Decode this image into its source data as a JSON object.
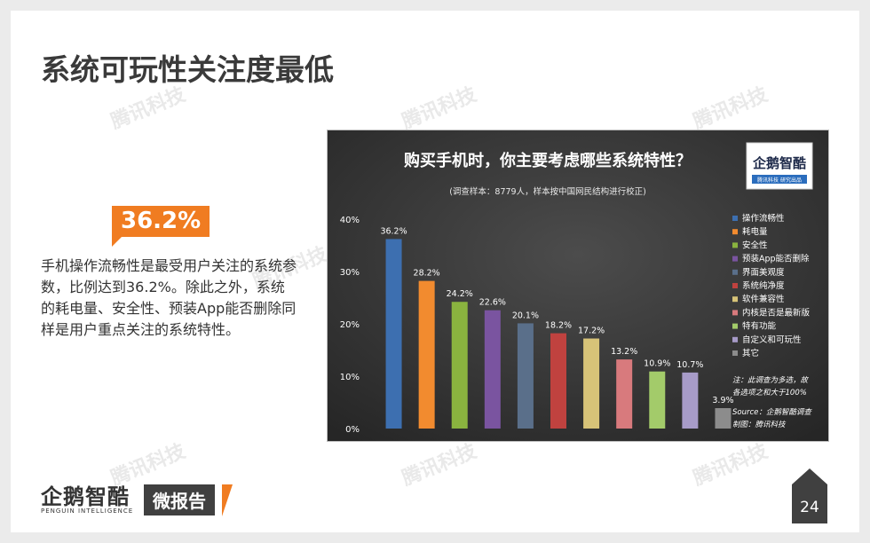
{
  "page": {
    "title": "系统可玩性关注度最低",
    "highlight": "36.2%",
    "paragraph": "手机操作流畅性是最受用户关注的系统参数，比例达到36.2%。除此之外，系统的耗电量、安全性、预装App能否删除同样是用户重点关注的系统特性。",
    "watermark": "腾讯科技",
    "logo_text": "企鹅智酷",
    "logo_sub": "PENGUIN INTELLIGENCE",
    "report_label": "微报告",
    "page_number": "24"
  },
  "chart_logo": {
    "name": "企鹅智酷",
    "sub": "腾讯科技  研究出品"
  },
  "chart_data": {
    "type": "bar",
    "title": "购买手机时，你主要考虑哪些系统特性？",
    "subtitle": "(调查样本：8779人，样本按中国网民结构进行校正)",
    "categories": [
      "操作流畅性",
      "耗电量",
      "安全性",
      "预装App能否删除",
      "界面美观度",
      "系统纯净度",
      "软件兼容性",
      "内核是否是最新版",
      "特有功能",
      "自定义和可玩性",
      "其它"
    ],
    "values": [
      36.2,
      28.2,
      24.2,
      22.6,
      20.1,
      18.2,
      17.2,
      13.2,
      10.9,
      10.7,
      3.9
    ],
    "value_labels": [
      "36.2%",
      "28.2%",
      "24.2%",
      "22.6%",
      "20.1%",
      "18.2%",
      "17.2%",
      "13.2%",
      "10.9%",
      "10.7%",
      "3.9%"
    ],
    "colors": [
      "#3d6fb0",
      "#f28b2f",
      "#8ab33f",
      "#7a54a0",
      "#5a6f8a",
      "#c0423f",
      "#d7c378",
      "#d87a7d",
      "#a3cb6a",
      "#a79bc8",
      "#8c8c8c"
    ],
    "ylim": [
      0,
      40
    ],
    "yticks": [
      "0%",
      "10%",
      "20%",
      "30%",
      "40%"
    ],
    "grid": false,
    "legend": "right",
    "notes": [
      "注：此调查为多选，故",
      "各选项之和大于100%"
    ],
    "source": "Source：企鹅智酷调查",
    "maker": "制图：腾讯科技"
  }
}
